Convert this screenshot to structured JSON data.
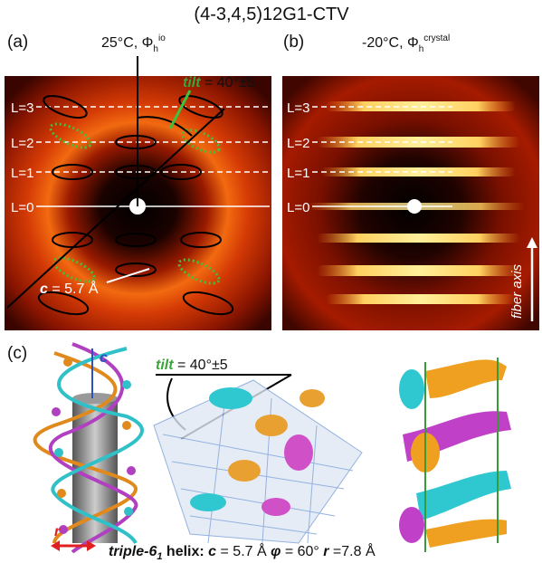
{
  "title": "(4-3,4,5)12G1-CTV",
  "panels": [
    {
      "label": "(a)",
      "condition": {
        "text": "25°C, Φ",
        "sub": "h",
        "sup": "io"
      },
      "layer_lines": [
        "L=3",
        "L=2",
        "L=1",
        "L=0"
      ],
      "tilt": {
        "symbol": "tilt",
        "text": " = 40°±5"
      },
      "spacing": {
        "symbol": "c",
        "text": " = 5.7 Å"
      }
    },
    {
      "label": "(b)",
      "condition": {
        "text": "-20°C, Φ",
        "sub": "h",
        "sup": "crystal"
      },
      "layer_lines": [
        "L=3",
        "L=2",
        "L=1",
        "L=0"
      ],
      "axis_label": "fiber axis"
    },
    {
      "label": "(c)",
      "tilt": {
        "symbol": "tilt",
        "text": " = 40°±5"
      },
      "helix_labels": [
        "c",
        "r"
      ],
      "caption": {
        "name": "triple-6",
        "name_sub": "1",
        "text1": " helix: ",
        "c": "c",
        "text2": " = 5.7 Å ",
        "phi": "φ",
        "text3": " = 60° ",
        "r": "r",
        "text4": " =7.8 Å"
      }
    }
  ]
}
